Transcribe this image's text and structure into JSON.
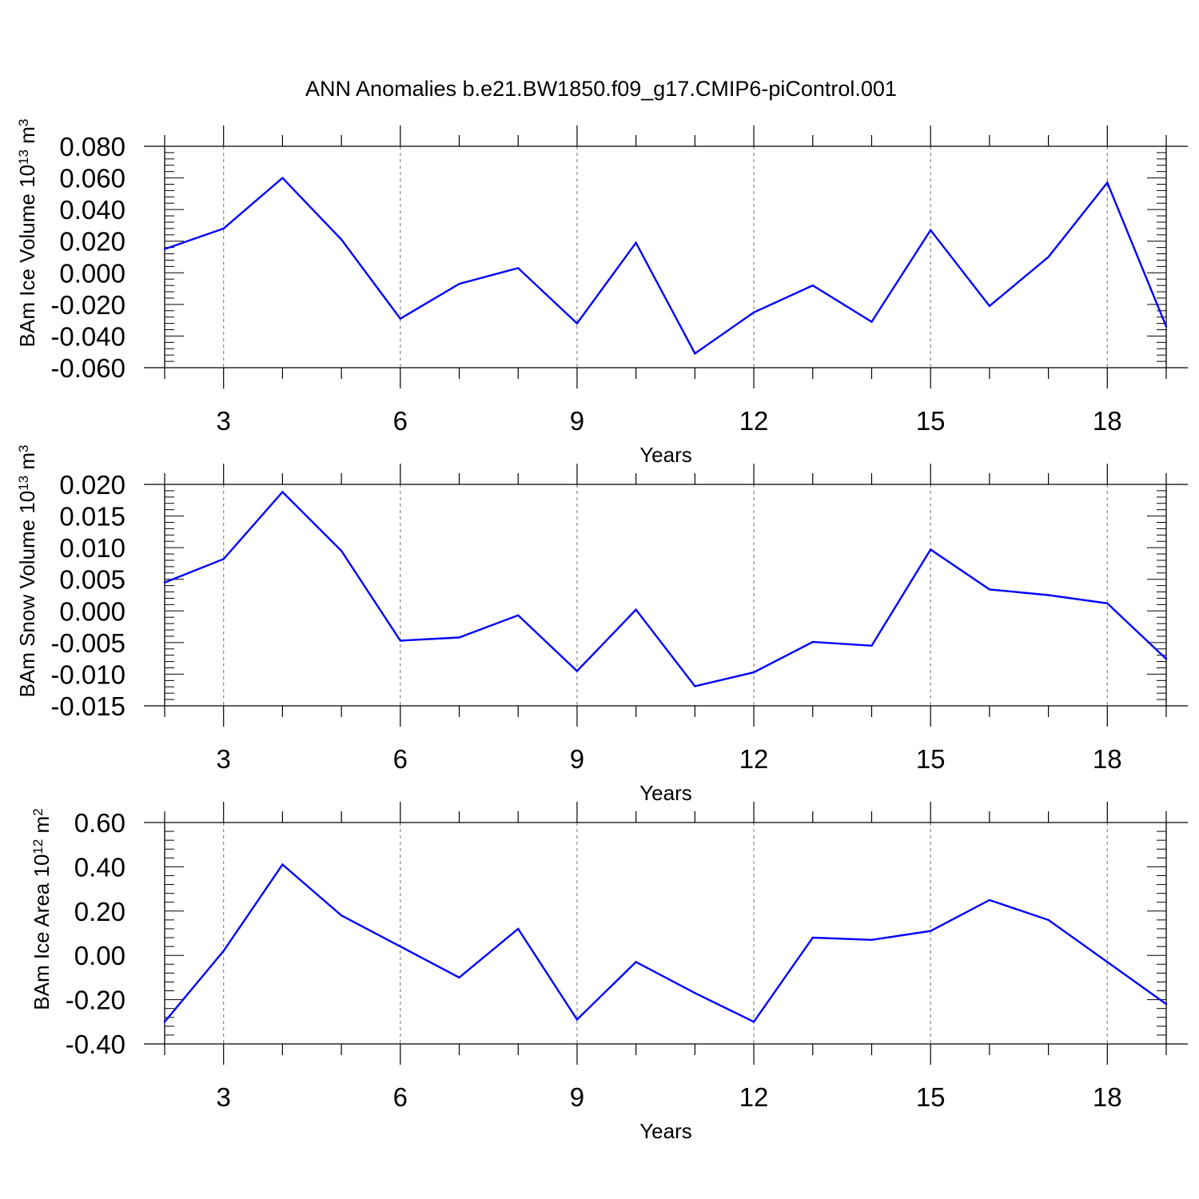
{
  "title": "ANN Anomalies b.e21.BW1850.f09_g17.CMIP6-piControl.001",
  "line_color": "#0000ff",
  "chart_data": [
    {
      "type": "line",
      "ylabel": "BAm Ice Volume 10",
      "ylabel_exp": "13",
      "ylabel_unit": "m",
      "ylabel_unit_exp": "3",
      "xlabel": "Years",
      "xlim": [
        2,
        19
      ],
      "ylim": [
        -0.06,
        0.08
      ],
      "ytick_values": [
        -0.06,
        -0.04,
        -0.02,
        0.0,
        0.02,
        0.04,
        0.06,
        0.08
      ],
      "ytick_labels": [
        "-0.060",
        "-0.040",
        "-0.020",
        "0.000",
        "0.020",
        "0.040",
        "0.060",
        "0.080"
      ],
      "xtick_values": [
        3,
        6,
        9,
        12,
        15,
        18
      ],
      "xtick_labels": [
        "3",
        "6",
        "9",
        "12",
        "15",
        "18"
      ],
      "x": [
        2,
        3,
        4,
        5,
        6,
        7,
        8,
        9,
        10,
        11,
        12,
        13,
        14,
        15,
        16,
        17,
        18,
        19
      ],
      "y": [
        0.015,
        0.028,
        0.06,
        0.021,
        -0.029,
        -0.007,
        0.003,
        -0.032,
        0.019,
        -0.051,
        -0.025,
        -0.008,
        -0.031,
        0.027,
        -0.021,
        0.01,
        0.057,
        -0.034
      ]
    },
    {
      "type": "line",
      "ylabel": "BAm Snow Volume 10",
      "ylabel_exp": "13",
      "ylabel_unit": "m",
      "ylabel_unit_exp": "3",
      "xlabel": "Years",
      "xlim": [
        2,
        19
      ],
      "ylim": [
        -0.015,
        0.02
      ],
      "ytick_values": [
        -0.015,
        -0.01,
        -0.005,
        0.0,
        0.005,
        0.01,
        0.015,
        0.02
      ],
      "ytick_labels": [
        "-0.015",
        "-0.010",
        "-0.005",
        "0.000",
        "0.005",
        "0.010",
        "0.015",
        "0.020"
      ],
      "xtick_values": [
        3,
        6,
        9,
        12,
        15,
        18
      ],
      "xtick_labels": [
        "3",
        "6",
        "9",
        "12",
        "15",
        "18"
      ],
      "x": [
        2,
        3,
        4,
        5,
        6,
        7,
        8,
        9,
        10,
        11,
        12,
        13,
        14,
        15,
        16,
        17,
        18,
        19
      ],
      "y": [
        0.0045,
        0.0082,
        0.0188,
        0.0095,
        -0.0047,
        -0.0042,
        -0.0007,
        -0.0095,
        0.0002,
        -0.0119,
        -0.0097,
        -0.0049,
        -0.0055,
        0.0097,
        0.0034,
        0.0025,
        0.0012,
        -0.0076
      ]
    },
    {
      "type": "line",
      "ylabel": "BAm Ice Area 10",
      "ylabel_exp": "12",
      "ylabel_unit": "m",
      "ylabel_unit_exp": "2",
      "xlabel": "Years",
      "xlim": [
        2,
        19
      ],
      "ylim": [
        -0.4,
        0.6
      ],
      "ytick_values": [
        -0.4,
        -0.2,
        0.0,
        0.2,
        0.4,
        0.6
      ],
      "ytick_labels": [
        "-0.40",
        "-0.20",
        "0.00",
        "0.20",
        "0.40",
        "0.60"
      ],
      "xtick_values": [
        3,
        6,
        9,
        12,
        15,
        18
      ],
      "xtick_labels": [
        "3",
        "6",
        "9",
        "12",
        "15",
        "18"
      ],
      "x": [
        2,
        3,
        4,
        5,
        6,
        7,
        8,
        9,
        10,
        11,
        12,
        13,
        14,
        15,
        16,
        17,
        18,
        19
      ],
      "y": [
        -0.3,
        0.02,
        0.41,
        0.18,
        0.04,
        -0.1,
        0.12,
        -0.29,
        -0.03,
        -0.17,
        -0.3,
        0.08,
        0.07,
        0.11,
        0.25,
        0.16,
        -0.03,
        -0.22
      ]
    }
  ]
}
